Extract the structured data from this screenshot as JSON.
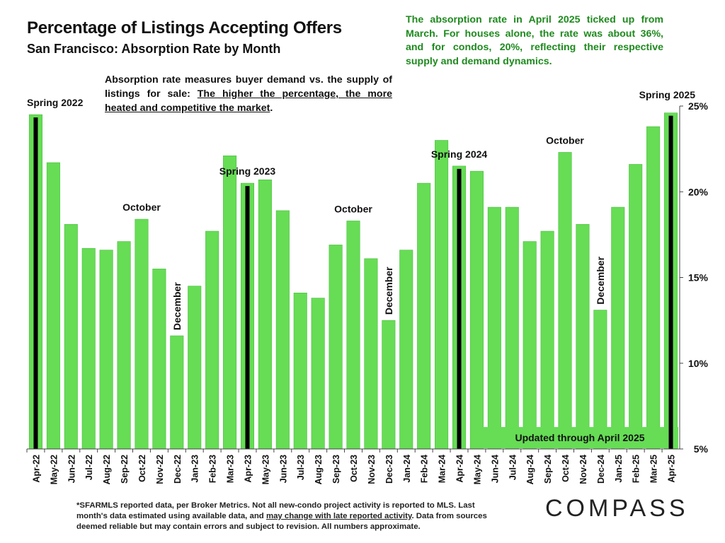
{
  "title": "Percentage of Listings Accepting Offers",
  "subtitle": "San Francisco:  Absorption Rate by Month",
  "callout": "The absorption rate in April 2025 ticked up from March. For houses alone, the rate was about 36%, and for condos, 20%, reflecting their respective supply and demand dynamics.",
  "explain": {
    "plain": "Absorption rate measures buyer demand vs. the supply of listings for sale: ",
    "underlined": "The higher the percentage, the more heated and competitive the market",
    "end": "."
  },
  "footnote": {
    "line1": "*SFARMLS reported data, per Broker Metrics. Not all new-condo project activity is reported to MLS. Last month's data estimated using available data, and ",
    "underlined": "may change with late reported activity",
    "line2": ". Data from sources deemed reliable but may contain errors and subject to revision. All numbers approximate."
  },
  "logo": "COMPASS",
  "updated_label": "Updated through April 2025",
  "colors": {
    "bar": "#66dd55",
    "bar_stroke": "#4cbb40",
    "highlight": "#000000",
    "callout": "#1e8a1e",
    "updated_box": "#66dd55"
  },
  "chart_data": {
    "type": "bar",
    "title": "Percentage of Listings Accepting Offers",
    "ylabel": "",
    "ylim": [
      5,
      25
    ],
    "yticks": [
      "5%",
      "10%",
      "15%",
      "20%",
      "25%"
    ],
    "ytick_values": [
      5,
      10,
      15,
      20,
      25
    ],
    "categories": [
      "Apr-22",
      "May-22",
      "Jun-22",
      "Jul-22",
      "Aug-22",
      "Sep-22",
      "Oct-22",
      "Nov-22",
      "Dec-22",
      "Jan-23",
      "Feb-23",
      "Mar-23",
      "Apr-23",
      "May-23",
      "Jun-23",
      "Jul-23",
      "Aug-23",
      "Sep-23",
      "Oct-23",
      "Nov-23",
      "Dec-23",
      "Jan-24",
      "Feb-24",
      "Mar-24",
      "Apr-24",
      "May-24",
      "Jun-24",
      "Jul-24",
      "Aug-24",
      "Sep-24",
      "Oct-24",
      "Nov-24",
      "Dec-24",
      "Jan-25",
      "Feb-25",
      "Mar-25",
      "Apr-25"
    ],
    "values": [
      24.5,
      21.7,
      18.1,
      16.7,
      16.6,
      17.1,
      18.4,
      15.5,
      11.6,
      14.5,
      17.7,
      22.1,
      20.5,
      20.7,
      18.9,
      14.1,
      13.8,
      16.9,
      18.3,
      16.1,
      12.5,
      16.6,
      20.5,
      23.0,
      21.5,
      21.2,
      19.1,
      19.1,
      17.1,
      17.7,
      22.3,
      18.1,
      13.1,
      19.1,
      21.6,
      23.8,
      24.6
    ],
    "highlighted": [
      "Apr-22",
      "Apr-23",
      "Apr-24",
      "Apr-25"
    ],
    "annotations": [
      {
        "text": "Spring 2022",
        "category": "Apr-22",
        "orientation": "horizontal"
      },
      {
        "text": "October",
        "category": "Oct-22",
        "orientation": "horizontal"
      },
      {
        "text": "December",
        "category": "Dec-22",
        "orientation": "vertical"
      },
      {
        "text": "Spring 2023",
        "category": "Apr-23",
        "orientation": "horizontal"
      },
      {
        "text": "October",
        "category": "Oct-23",
        "orientation": "horizontal"
      },
      {
        "text": "December",
        "category": "Dec-23",
        "orientation": "vertical"
      },
      {
        "text": "Spring 2024",
        "category": "Apr-24",
        "orientation": "horizontal"
      },
      {
        "text": "October",
        "category": "Oct-24",
        "orientation": "horizontal"
      },
      {
        "text": "December",
        "category": "Dec-24",
        "orientation": "vertical"
      },
      {
        "text": "Spring 2025",
        "category": "Apr-25",
        "orientation": "horizontal"
      }
    ],
    "grid": false,
    "y_axis_side": "right"
  }
}
